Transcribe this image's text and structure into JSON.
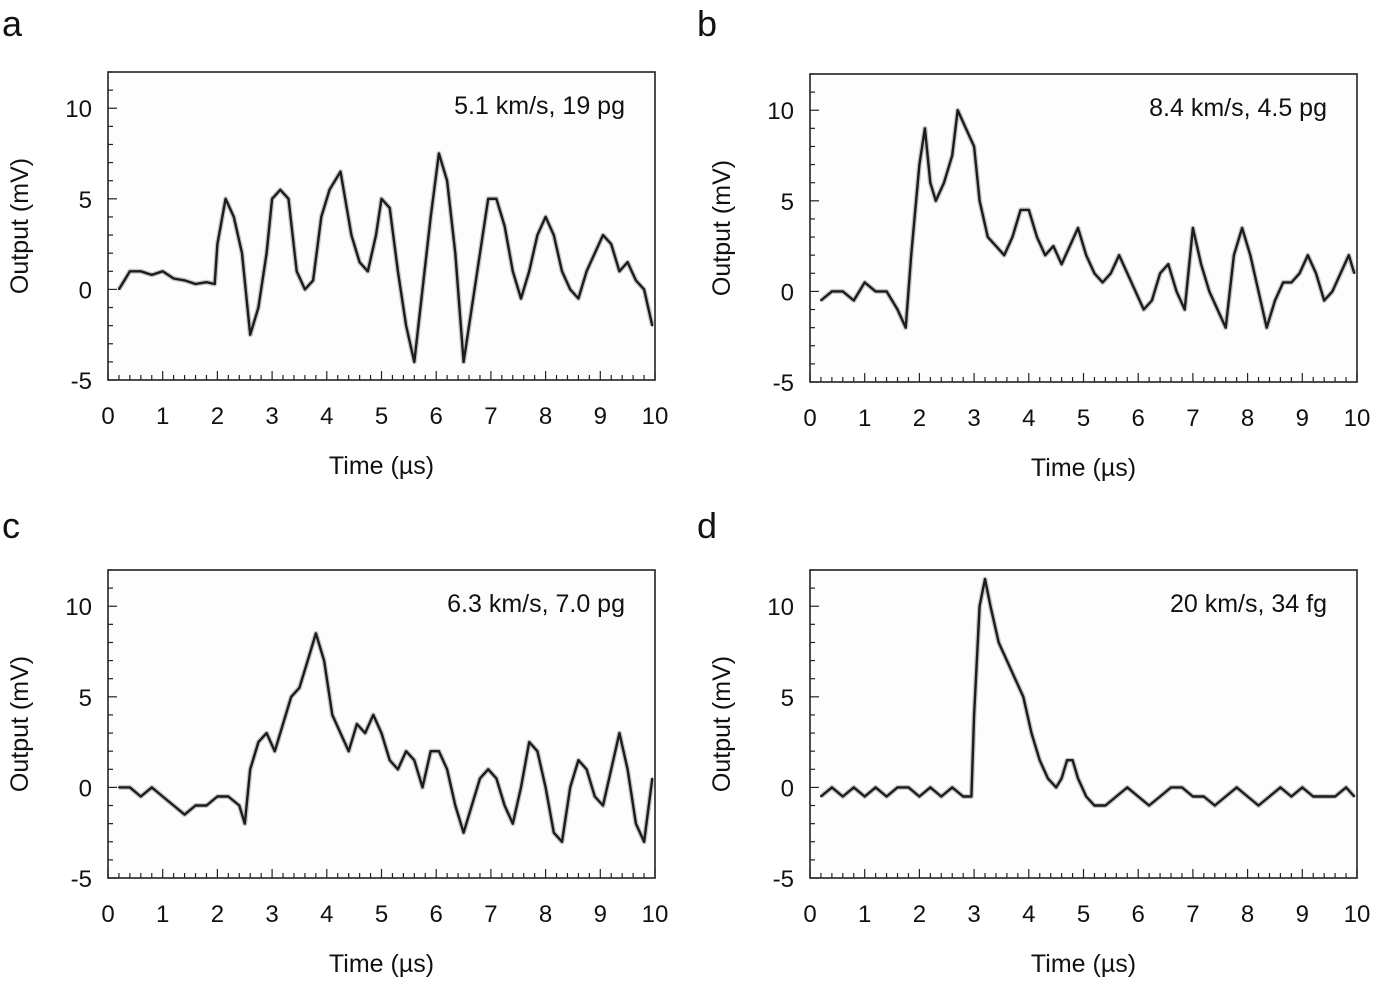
{
  "chart_data": [
    {
      "type": "line",
      "panel_label": "a",
      "annotation": "5.1 km/s, 19 pg",
      "xlabel": "Time (µs)",
      "ylabel": "Output (mV)",
      "xlim": [
        0,
        10
      ],
      "ylim": [
        -5,
        12
      ],
      "x_ticks": [
        "0",
        "1",
        "2",
        "3",
        "4",
        "5",
        "6",
        "7",
        "8",
        "9",
        "10"
      ],
      "y_ticks": [
        "-5",
        "0",
        "5",
        "10"
      ],
      "series": [
        {
          "x": [
            0.2,
            0.4,
            0.6,
            0.8,
            1.0,
            1.2,
            1.4,
            1.6,
            1.8,
            1.95,
            2.0,
            2.15,
            2.3,
            2.45,
            2.6,
            2.75,
            2.9,
            3.0,
            3.15,
            3.3,
            3.45,
            3.6,
            3.75,
            3.9,
            4.05,
            4.25,
            4.45,
            4.6,
            4.75,
            4.9,
            5.0,
            5.15,
            5.3,
            5.45,
            5.6,
            5.75,
            5.9,
            6.05,
            6.2,
            6.35,
            6.5,
            6.65,
            6.8,
            6.95,
            7.1,
            7.25,
            7.4,
            7.55,
            7.7,
            7.85,
            8.0,
            8.15,
            8.3,
            8.45,
            8.6,
            8.75,
            8.9,
            9.05,
            9.2,
            9.35,
            9.5,
            9.65,
            9.8,
            9.95
          ],
          "y": [
            0,
            1,
            1,
            0.8,
            1,
            0.6,
            0.5,
            0.3,
            0.4,
            0.3,
            2.5,
            5,
            4,
            2,
            -2.5,
            -1,
            2,
            5,
            5.5,
            5,
            1,
            0,
            0.5,
            4,
            5.5,
            6.5,
            3,
            1.5,
            1,
            3,
            5,
            4.5,
            1,
            -2,
            -4,
            0,
            4,
            7.5,
            6,
            2,
            -4,
            -1,
            2,
            5,
            5,
            3.5,
            1,
            -0.5,
            1,
            3,
            4,
            3,
            1,
            0,
            -0.5,
            1,
            2,
            3,
            2.5,
            1,
            1.5,
            0.5,
            0,
            -2
          ]
        }
      ]
    },
    {
      "type": "line",
      "panel_label": "b",
      "annotation": "8.4 km/s, 4.5 pg",
      "xlabel": "Time (µs)",
      "ylabel": "Output (mV)",
      "xlim": [
        0,
        10
      ],
      "ylim": [
        -5,
        12
      ],
      "x_ticks": [
        "0",
        "1",
        "2",
        "3",
        "4",
        "5",
        "6",
        "7",
        "8",
        "9",
        "10"
      ],
      "y_ticks": [
        "-5",
        "0",
        "5",
        "10"
      ],
      "series": [
        {
          "x": [
            0.2,
            0.4,
            0.6,
            0.8,
            1.0,
            1.2,
            1.4,
            1.6,
            1.75,
            1.85,
            2.0,
            2.1,
            2.2,
            2.3,
            2.45,
            2.6,
            2.7,
            2.85,
            3.0,
            3.1,
            3.25,
            3.4,
            3.55,
            3.7,
            3.85,
            4.0,
            4.15,
            4.3,
            4.45,
            4.6,
            4.75,
            4.9,
            5.05,
            5.2,
            5.35,
            5.5,
            5.65,
            5.8,
            5.95,
            6.1,
            6.25,
            6.4,
            6.55,
            6.7,
            6.85,
            7.0,
            7.15,
            7.3,
            7.45,
            7.6,
            7.75,
            7.9,
            8.05,
            8.2,
            8.35,
            8.5,
            8.65,
            8.8,
            8.95,
            9.1,
            9.25,
            9.4,
            9.55,
            9.7,
            9.85,
            9.95
          ],
          "y": [
            -0.5,
            0,
            0,
            -0.5,
            0.5,
            0,
            0,
            -1,
            -2,
            2,
            7,
            9,
            6,
            5,
            6,
            7.5,
            10,
            9,
            8,
            5,
            3,
            2.5,
            2,
            3,
            4.5,
            4.5,
            3,
            2,
            2.5,
            1.5,
            2.5,
            3.5,
            2,
            1,
            0.5,
            1,
            2,
            1,
            0,
            -1,
            -0.5,
            1,
            1.5,
            0,
            -1,
            3.5,
            1.5,
            0,
            -1,
            -2,
            2,
            3.5,
            2,
            0,
            -2,
            -0.5,
            0.5,
            0.5,
            1,
            2,
            1,
            -0.5,
            0,
            1,
            2,
            1
          ]
        }
      ]
    },
    {
      "type": "line",
      "panel_label": "c",
      "annotation": "6.3 km/s, 7.0 pg",
      "xlabel": "Time (µs)",
      "ylabel": "Output (mV)",
      "xlim": [
        0,
        10
      ],
      "ylim": [
        -5,
        12
      ],
      "x_ticks": [
        "0",
        "1",
        "2",
        "3",
        "4",
        "5",
        "6",
        "7",
        "8",
        "9",
        "10"
      ],
      "y_ticks": [
        "-5",
        "0",
        "5",
        "10"
      ],
      "series": [
        {
          "x": [
            0.2,
            0.4,
            0.6,
            0.8,
            1.0,
            1.2,
            1.4,
            1.6,
            1.8,
            2.0,
            2.2,
            2.4,
            2.5,
            2.6,
            2.75,
            2.9,
            3.05,
            3.2,
            3.35,
            3.5,
            3.65,
            3.8,
            3.95,
            4.1,
            4.25,
            4.4,
            4.55,
            4.7,
            4.85,
            5.0,
            5.15,
            5.3,
            5.45,
            5.6,
            5.75,
            5.9,
            6.05,
            6.2,
            6.35,
            6.5,
            6.65,
            6.8,
            6.95,
            7.1,
            7.25,
            7.4,
            7.55,
            7.7,
            7.85,
            8.0,
            8.15,
            8.3,
            8.45,
            8.6,
            8.75,
            8.9,
            9.05,
            9.2,
            9.35,
            9.5,
            9.65,
            9.8,
            9.95
          ],
          "y": [
            0,
            0,
            -0.5,
            0,
            -0.5,
            -1,
            -1.5,
            -1,
            -1,
            -0.5,
            -0.5,
            -1,
            -2,
            1,
            2.5,
            3,
            2,
            3.5,
            5,
            5.5,
            7,
            8.5,
            7,
            4,
            3,
            2,
            3.5,
            3,
            4,
            3,
            1.5,
            1,
            2,
            1.5,
            0,
            2,
            2,
            1,
            -1,
            -2.5,
            -1,
            0.5,
            1,
            0.5,
            -1,
            -2,
            0,
            2.5,
            2,
            0,
            -2.5,
            -3,
            0,
            1.5,
            1,
            -0.5,
            -1,
            1,
            3,
            1,
            -2,
            -3,
            0.5
          ]
        }
      ]
    },
    {
      "type": "line",
      "panel_label": "d",
      "annotation": "20 km/s, 34 fg",
      "xlabel": "Time (µs)",
      "ylabel": "Output (mV)",
      "xlim": [
        0,
        10
      ],
      "ylim": [
        -5,
        12
      ],
      "x_ticks": [
        "0",
        "1",
        "2",
        "3",
        "4",
        "5",
        "6",
        "7",
        "8",
        "9",
        "10"
      ],
      "y_ticks": [
        "-5",
        "0",
        "5",
        "10"
      ],
      "series": [
        {
          "x": [
            0.2,
            0.4,
            0.6,
            0.8,
            1.0,
            1.2,
            1.4,
            1.6,
            1.8,
            2.0,
            2.2,
            2.4,
            2.6,
            2.8,
            2.95,
            3.0,
            3.1,
            3.2,
            3.3,
            3.45,
            3.6,
            3.75,
            3.9,
            4.05,
            4.2,
            4.35,
            4.5,
            4.6,
            4.7,
            4.8,
            4.9,
            5.05,
            5.2,
            5.4,
            5.6,
            5.8,
            6.0,
            6.2,
            6.4,
            6.6,
            6.8,
            7.0,
            7.2,
            7.4,
            7.6,
            7.8,
            8.0,
            8.2,
            8.4,
            8.6,
            8.8,
            9.0,
            9.2,
            9.4,
            9.6,
            9.8,
            9.95
          ],
          "y": [
            -0.5,
            0,
            -0.5,
            0,
            -0.5,
            0,
            -0.5,
            0,
            0,
            -0.5,
            0,
            -0.5,
            0,
            -0.5,
            -0.5,
            4,
            10,
            11.5,
            10,
            8,
            7,
            6,
            5,
            3,
            1.5,
            0.5,
            0,
            0.5,
            1.5,
            1.5,
            0.5,
            -0.5,
            -1,
            -1,
            -0.5,
            0,
            -0.5,
            -1,
            -0.5,
            0,
            0,
            -0.5,
            -0.5,
            -1,
            -0.5,
            0,
            -0.5,
            -1,
            -0.5,
            0,
            -0.5,
            0,
            -0.5,
            -0.5,
            -0.5,
            0,
            -0.5
          ]
        }
      ]
    }
  ]
}
